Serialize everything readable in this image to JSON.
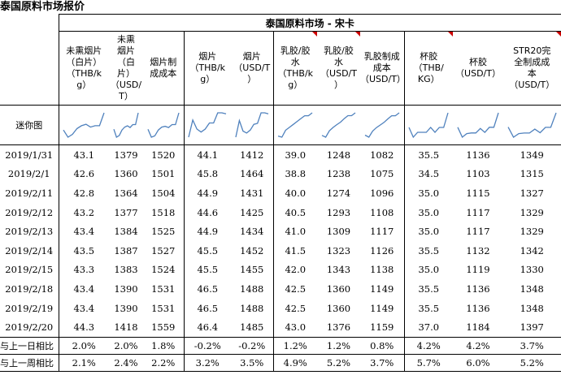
{
  "page_title": "泰国原料市场报价",
  "section_title": "泰国原料市场 - 宋卡",
  "sparkline_label": "迷你图",
  "columns": [
    {
      "label": "未熏烟片\n（白片）\n（THB/k\ng）",
      "flag": false
    },
    {
      "label": "未熏\n烟片\n（白\n片）\n（USD/\nT）",
      "flag": false
    },
    {
      "label": "烟片制\n成成本",
      "flag": false
    },
    {
      "label": "烟片\n（THB/k\ng）",
      "flag": false
    },
    {
      "label": "烟片\n（USD/T\n）",
      "flag": false
    },
    {
      "label": "乳胶/胶\n水\n（THB/k\ng）",
      "flag": true
    },
    {
      "label": "乳胶/胶\n水\n（USD/T\n）",
      "flag": true
    },
    {
      "label": "乳胶制成\n成本\n（USD/T）",
      "flag": false
    },
    {
      "label": "杯胶\n（THB/\nKG）",
      "flag": true
    },
    {
      "label": "杯胶\n（USD/T）",
      "flag": false
    },
    {
      "label": "STR20完\n全制成成\n本\n（USD/T）",
      "flag": true
    }
  ],
  "rows": [
    {
      "date": "2019/1/31",
      "values": [
        "43.1",
        "1379",
        "1520",
        "44.1",
        "1412",
        "39.0",
        "1248",
        "1082",
        "35.5",
        "1136",
        "1349"
      ]
    },
    {
      "date": "2019/2/1",
      "values": [
        "42.6",
        "1360",
        "1501",
        "45.8",
        "1464",
        "38.8",
        "1238",
        "1075",
        "34.5",
        "1103",
        "1315"
      ]
    },
    {
      "date": "2019/2/11",
      "values": [
        "42.8",
        "1364",
        "1504",
        "44.9",
        "1431",
        "40.0",
        "1274",
        "1096",
        "35.0",
        "1115",
        "1327"
      ]
    },
    {
      "date": "2019/2/12",
      "values": [
        "43.2",
        "1377",
        "1518",
        "44.6",
        "1425",
        "40.5",
        "1293",
        "1108",
        "35.0",
        "1117",
        "1329"
      ]
    },
    {
      "date": "2019/2/13",
      "values": [
        "43.4",
        "1384",
        "1525",
        "44.9",
        "1434",
        "41.0",
        "1309",
        "1117",
        "35.0",
        "1117",
        "1329"
      ]
    },
    {
      "date": "2019/2/14",
      "values": [
        "43.5",
        "1387",
        "1527",
        "45.5",
        "1452",
        "41.5",
        "1323",
        "1126",
        "35.5",
        "1132",
        "1342"
      ]
    },
    {
      "date": "2019/2/15",
      "values": [
        "43.3",
        "1383",
        "1524",
        "45.5",
        "1455",
        "42.0",
        "1343",
        "1138",
        "35.0",
        "1119",
        "1330"
      ]
    },
    {
      "date": "2019/2/18",
      "values": [
        "43.4",
        "1390",
        "1531",
        "46.5",
        "1488",
        "42.5",
        "1360",
        "1149",
        "35.5",
        "1136",
        "1348"
      ]
    },
    {
      "date": "2019/2/19",
      "values": [
        "43.4",
        "1390",
        "1531",
        "46.5",
        "1488",
        "42.5",
        "1360",
        "1149",
        "35.5",
        "1136",
        "1348"
      ]
    },
    {
      "date": "2019/2/20",
      "values": [
        "44.3",
        "1418",
        "1559",
        "46.4",
        "1485",
        "43.0",
        "1376",
        "1159",
        "37.0",
        "1184",
        "1397"
      ]
    }
  ],
  "changes": [
    {
      "label": "与上一日相比",
      "values": [
        "2.0%",
        "2.0%",
        "1.8%",
        "-0.2%",
        "-0.2%",
        "1.2%",
        "1.2%",
        "0.8%",
        "4.2%",
        "4.2%",
        "3.7%"
      ]
    },
    {
      "label": "与上一周相比",
      "values": [
        "2.1%",
        "2.4%",
        "2.2%",
        "3.2%",
        "3.5%",
        "4.9%",
        "5.2%",
        "3.7%",
        "5.7%",
        "6.0%",
        "5.2%"
      ]
    }
  ],
  "colors": {
    "sparkline": "#4f81bd",
    "flag": "#cc0000",
    "border": "#000000"
  }
}
